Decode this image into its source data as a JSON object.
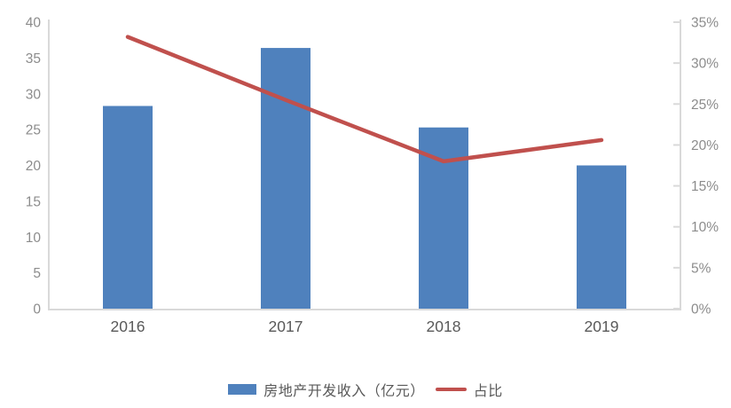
{
  "chart_data": {
    "type": "bar",
    "subtype": "combo-bar-line",
    "title": "",
    "categories": [
      "2016",
      "2017",
      "2018",
      "2019"
    ],
    "series": [
      {
        "name": "房地产开发收入（亿元）",
        "type": "bar",
        "axis": "left",
        "values": [
          28.3,
          36.4,
          25.3,
          20.0
        ],
        "color": "#4f81bd"
      },
      {
        "name": "占比",
        "type": "line",
        "axis": "right",
        "values": [
          33.2,
          25.5,
          18.0,
          20.6
        ],
        "color": "#c0504d"
      }
    ],
    "left_axis": {
      "min": 0,
      "max": 40,
      "step": 5,
      "tick_labels": [
        "0",
        "5",
        "10",
        "15",
        "20",
        "25",
        "30",
        "35",
        "40"
      ]
    },
    "right_axis": {
      "min": 0,
      "max": 35,
      "step": 5,
      "unit": "%",
      "tick_labels": [
        "0%",
        "5%",
        "10%",
        "15%",
        "20%",
        "25%",
        "30%",
        "35%"
      ]
    },
    "grid": false,
    "legend_position": "bottom"
  },
  "legend": {
    "items": [
      {
        "label": "房地产开发收入（亿元）",
        "swatch": "bar",
        "color": "#4f81bd"
      },
      {
        "label": "占比",
        "swatch": "line",
        "color": "#c0504d"
      }
    ]
  },
  "colors": {
    "bar": "#4f81bd",
    "line": "#c0504d",
    "axis_line": "#d9d9d9",
    "y_tick_text": "#8c8c8c",
    "x_tick_text": "#595959",
    "legend_text": "#595959",
    "background": "#ffffff"
  }
}
